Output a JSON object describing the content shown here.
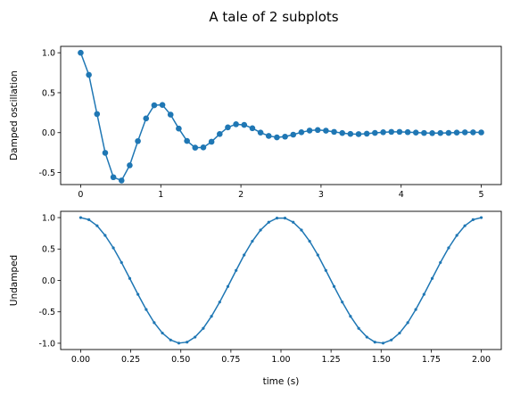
{
  "figure": {
    "title": "A tale of 2 subplots"
  },
  "chart_data": [
    {
      "type": "line",
      "markers": "circle-large",
      "color": "#1f77b4",
      "title": "",
      "xlabel": "",
      "ylabel": "Damped oscillation",
      "xlim": [
        -0.25,
        5.25
      ],
      "ylim": [
        -0.65,
        1.08
      ],
      "xticks": [
        0,
        1,
        2,
        3,
        4,
        5
      ],
      "xtick_labels": [
        "0",
        "1",
        "2",
        "3",
        "4",
        "5"
      ],
      "yticks": [
        1.0,
        0.5,
        0.0,
        -0.5
      ],
      "ytick_labels": [
        "1.0",
        "0.5",
        "0.0",
        "-0.5"
      ],
      "grid": false,
      "series": [
        {
          "x": [
            0.0,
            0.102,
            0.204,
            0.306,
            0.408,
            0.51,
            0.612,
            0.714,
            0.816,
            0.918,
            1.02,
            1.122,
            1.224,
            1.327,
            1.429,
            1.531,
            1.633,
            1.735,
            1.837,
            1.939,
            2.041,
            2.143,
            2.245,
            2.347,
            2.449,
            2.551,
            2.653,
            2.755,
            2.857,
            2.959,
            3.061,
            3.163,
            3.265,
            3.367,
            3.469,
            3.571,
            3.673,
            3.776,
            3.878,
            3.98,
            4.082,
            4.184,
            4.286,
            4.388,
            4.49,
            4.592,
            4.694,
            4.796,
            4.898,
            5.0
          ],
          "y": [
            1.0,
            0.724,
            0.233,
            -0.253,
            -0.558,
            -0.599,
            -0.409,
            -0.106,
            0.178,
            0.343,
            0.347,
            0.225,
            0.051,
            -0.104,
            -0.188,
            -0.185,
            -0.114,
            -0.017,
            0.066,
            0.105,
            0.097,
            0.055,
            0.001,
            -0.041,
            -0.059,
            -0.05,
            -0.025,
            0.005,
            0.026,
            0.033,
            0.025,
            0.01,
            -0.005,
            -0.016,
            -0.019,
            -0.013,
            -0.003,
            0.005,
            0.01,
            0.01,
            0.006,
            0.001,
            -0.004,
            -0.006,
            -0.005,
            -0.003,
            0.001,
            0.004,
            0.004,
            0.003
          ]
        }
      ]
    },
    {
      "type": "line",
      "markers": "point-small",
      "color": "#1f77b4",
      "title": "",
      "xlabel": "time (s)",
      "ylabel": "Undamped",
      "xlim": [
        -0.1,
        2.1
      ],
      "ylim": [
        -1.1,
        1.1
      ],
      "xticks": [
        0.0,
        0.25,
        0.5,
        0.75,
        1.0,
        1.25,
        1.5,
        1.75,
        2.0
      ],
      "xtick_labels": [
        "0.00",
        "0.25",
        "0.50",
        "0.75",
        "1.00",
        "1.25",
        "1.50",
        "1.75",
        "2.00"
      ],
      "yticks": [
        1.0,
        0.5,
        0.0,
        -0.5,
        -1.0
      ],
      "ytick_labels": [
        "1.0",
        "0.5",
        "0.0",
        "-0.5",
        "-1.0"
      ],
      "grid": false,
      "series": [
        {
          "x": [
            0.0,
            0.041,
            0.082,
            0.122,
            0.163,
            0.204,
            0.245,
            0.286,
            0.327,
            0.367,
            0.408,
            0.449,
            0.49,
            0.531,
            0.571,
            0.612,
            0.653,
            0.694,
            0.735,
            0.776,
            0.816,
            0.857,
            0.898,
            0.939,
            0.98,
            1.02,
            1.061,
            1.102,
            1.143,
            1.184,
            1.224,
            1.265,
            1.306,
            1.347,
            1.388,
            1.429,
            1.469,
            1.51,
            1.551,
            1.592,
            1.633,
            1.673,
            1.714,
            1.755,
            1.796,
            1.837,
            1.878,
            1.918,
            1.959,
            2.0
          ],
          "y": [
            1.0,
            0.967,
            0.87,
            0.717,
            0.518,
            0.285,
            0.032,
            -0.222,
            -0.463,
            -0.672,
            -0.838,
            -0.948,
            -0.998,
            -0.982,
            -0.902,
            -0.762,
            -0.571,
            -0.345,
            -0.096,
            0.16,
            0.405,
            0.624,
            0.802,
            0.927,
            0.992,
            0.992,
            0.927,
            0.802,
            0.624,
            0.405,
            0.16,
            -0.096,
            -0.345,
            -0.571,
            -0.762,
            -0.902,
            -0.982,
            -0.998,
            -0.948,
            -0.838,
            -0.672,
            -0.463,
            -0.222,
            0.032,
            0.285,
            0.518,
            0.717,
            0.87,
            0.967,
            1.0
          ]
        }
      ]
    }
  ]
}
